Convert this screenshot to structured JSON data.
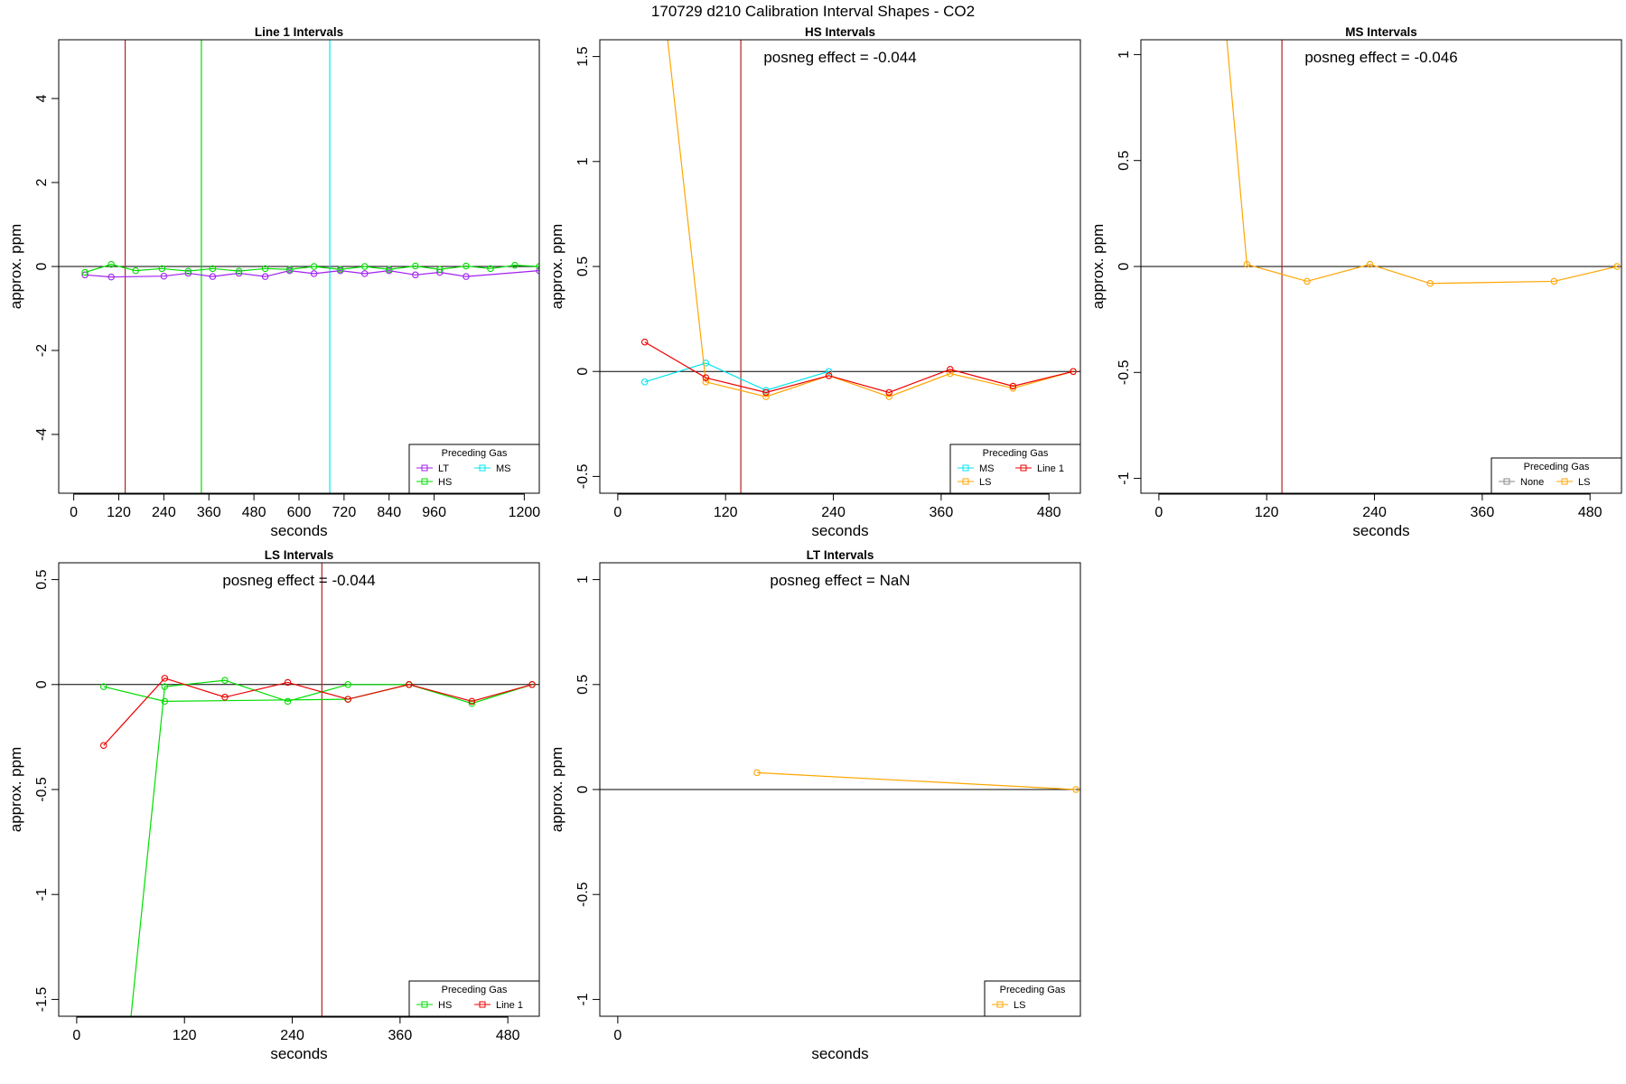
{
  "figure_title": "170729  d210   Calibration Interval Shapes - CO2",
  "colors": {
    "LT": "#a020f0",
    "HS": "#00dd00",
    "MS": "#00e5ee",
    "LS": "#ffa500",
    "Line 1": "#ee0000",
    "None": "#888888",
    "vline_red": "#b22222",
    "vline_green": "#00dd00",
    "vline_cyan": "#00e5ee"
  },
  "chart_data": [
    {
      "type": "line",
      "title": "Line 1 Intervals",
      "xlabel": "seconds",
      "ylabel": "approx. ppm",
      "xlim": [
        -40,
        1240
      ],
      "ylim": [
        -5.4,
        5.4
      ],
      "xticks": [
        0,
        120,
        240,
        360,
        480,
        600,
        720,
        840,
        960,
        1200
      ],
      "yticks": [
        -4,
        -2,
        0,
        2,
        4
      ],
      "annotation": "",
      "vlines": [
        {
          "x": 137,
          "color": "vline_red"
        },
        {
          "x": 340,
          "color": "vline_green"
        },
        {
          "x": 682,
          "color": "vline_cyan"
        }
      ],
      "legend": {
        "title": "Preceding Gas",
        "entries": [
          "LT",
          "MS",
          "HS"
        ],
        "columns": 2,
        "position": "bottom-right"
      },
      "series": [
        {
          "name": "LT",
          "x": [
            30,
            100,
            240,
            305,
            370,
            440,
            510,
            575,
            640,
            710,
            775,
            840,
            910,
            975,
            1045,
            1240
          ],
          "values": [
            -0.2,
            -0.25,
            -0.23,
            -0.16,
            -0.24,
            -0.16,
            -0.24,
            -0.1,
            -0.17,
            -0.1,
            -0.17,
            -0.1,
            -0.2,
            -0.14,
            -0.24,
            -0.1
          ]
        },
        {
          "name": "HS",
          "x": [
            30,
            100,
            165,
            235,
            305,
            370,
            440,
            510,
            575,
            640,
            710,
            775,
            840,
            910,
            975,
            1045,
            1110,
            1175,
            1240
          ],
          "values": [
            -0.14,
            0.05,
            -0.1,
            -0.05,
            -0.11,
            -0.05,
            -0.11,
            -0.05,
            -0.07,
            0.0,
            -0.07,
            0.0,
            -0.07,
            0.01,
            -0.07,
            0.01,
            -0.05,
            0.03,
            0.0
          ]
        }
      ]
    },
    {
      "type": "line",
      "title": "HS Intervals",
      "xlabel": "seconds",
      "ylabel": "approx. ppm",
      "xlim": [
        -20,
        515
      ],
      "ylim": [
        -0.58,
        1.58
      ],
      "xticks": [
        0,
        120,
        240,
        360,
        480
      ],
      "yticks": [
        -0.5,
        0.0,
        0.5,
        1.0,
        1.5
      ],
      "annotation": "posneg effect = -0.044",
      "vlines": [
        {
          "x": 137,
          "color": "vline_red"
        }
      ],
      "legend": {
        "title": "Preceding Gas",
        "entries": [
          "MS",
          "Line 1",
          "LS"
        ],
        "columns": 2,
        "position": "bottom-right"
      },
      "series": [
        {
          "name": "MS",
          "x": [
            30,
            98,
            165,
            235
          ],
          "values": [
            -0.05,
            0.04,
            -0.09,
            0.0
          ]
        },
        {
          "name": "LS",
          "x": [
            55,
            98,
            165,
            235,
            302,
            370,
            440,
            507
          ],
          "values": [
            1.6,
            -0.05,
            -0.12,
            -0.02,
            -0.12,
            -0.01,
            -0.08,
            0.0
          ]
        },
        {
          "name": "Line 1",
          "x": [
            30,
            98,
            165,
            235,
            302,
            370,
            440,
            507
          ],
          "values": [
            0.14,
            -0.03,
            -0.1,
            -0.02,
            -0.1,
            0.01,
            -0.07,
            0.0
          ]
        }
      ]
    },
    {
      "type": "line",
      "title": "MS Intervals",
      "xlabel": "seconds",
      "ylabel": "approx. ppm",
      "xlim": [
        -20,
        515
      ],
      "ylim": [
        -1.07,
        1.07
      ],
      "xticks": [
        0,
        120,
        240,
        360,
        480
      ],
      "yticks": [
        -1.0,
        -0.5,
        0.0,
        0.5,
        1.0
      ],
      "annotation": "posneg effect = -0.046",
      "vlines": [
        {
          "x": 137,
          "color": "vline_red"
        }
      ],
      "legend": {
        "title": "Preceding Gas",
        "entries": [
          "None",
          "LS"
        ],
        "columns": 2,
        "position": "bottom-right"
      },
      "series": [
        {
          "name": "LS",
          "x": [
            75,
            98,
            165,
            235,
            302,
            440,
            510
          ],
          "values": [
            1.1,
            0.01,
            -0.07,
            0.01,
            -0.08,
            -0.07,
            0.0
          ]
        }
      ]
    },
    {
      "type": "line",
      "title": "LS Intervals",
      "xlabel": "seconds",
      "ylabel": "approx. ppm",
      "xlim": [
        -20,
        515
      ],
      "ylim": [
        -1.58,
        0.58
      ],
      "xticks": [
        0,
        120,
        240,
        360,
        480
      ],
      "yticks": [
        -1.5,
        -1.0,
        -0.5,
        0.0,
        0.5
      ],
      "annotation": "posneg effect = -0.044",
      "vlines": [
        {
          "x": 273,
          "color": "vline_red"
        }
      ],
      "legend": {
        "title": "Preceding Gas",
        "entries": [
          "HS",
          "Line 1"
        ],
        "columns": 2,
        "position": "bottom-right"
      },
      "series": [
        {
          "name": "HS",
          "x": [
            60,
            98,
            165,
            235,
            302,
            370,
            440,
            507
          ],
          "values": [
            -1.6,
            -0.01,
            0.02,
            -0.08,
            0.0,
            0.0,
            -0.09,
            0.0
          ]
        },
        {
          "name": "HS",
          "x": [
            30,
            98,
            302,
            370
          ],
          "values": [
            -0.01,
            -0.08,
            -0.07,
            0.0
          ]
        },
        {
          "name": "Line 1",
          "x": [
            30,
            98,
            165,
            235,
            302,
            370,
            440,
            507
          ],
          "values": [
            -0.29,
            0.03,
            -0.06,
            0.01,
            -0.07,
            0.0,
            -0.08,
            0.0
          ]
        }
      ]
    },
    {
      "type": "line",
      "title": "LT Intervals",
      "xlabel": "seconds",
      "ylabel": "approx. ppm",
      "xlim": [
        -20,
        515
      ],
      "ylim": [
        -1.08,
        1.08
      ],
      "xticks": [
        0
      ],
      "yticks": [
        -1.0,
        -0.5,
        0.0,
        0.5,
        1.0
      ],
      "annotation": "posneg effect = NaN",
      "vlines": [],
      "legend": {
        "title": "Preceding Gas",
        "entries": [
          "LS"
        ],
        "columns": 1,
        "position": "bottom-right"
      },
      "series": [
        {
          "name": "LS",
          "x": [
            155,
            510
          ],
          "values": [
            0.08,
            0.0
          ]
        }
      ]
    }
  ]
}
